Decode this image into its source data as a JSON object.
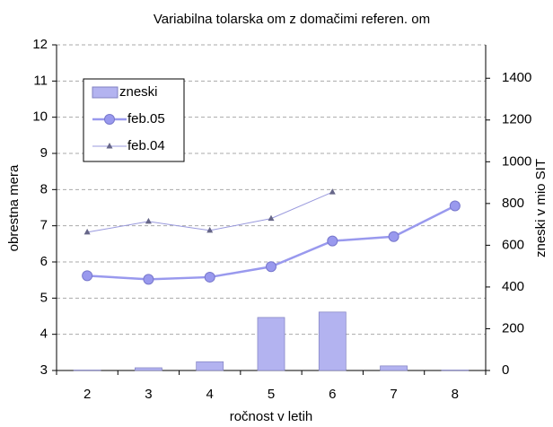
{
  "chart_data": {
    "type": "bar+line",
    "title": "Variabilna tolarska om z domačimi referen. om",
    "x_label": "ročnost v letih",
    "y_label": "obrestna mera",
    "y2_label": "zneski v mio SIT",
    "categories": [
      "2",
      "3",
      "4",
      "5",
      "6",
      "7",
      "8"
    ],
    "ylim": [
      3,
      12
    ],
    "yticks": [
      3,
      4,
      5,
      6,
      7,
      8,
      9,
      10,
      11,
      12
    ],
    "y2lim": [
      0,
      1560
    ],
    "y2ticks": [
      0,
      200,
      400,
      600,
      800,
      1000,
      1200,
      1400
    ],
    "grid": true,
    "series": [
      {
        "name": "zneski",
        "type": "bar",
        "axis": "y2",
        "color": "#b3b3f0",
        "values": [
          2,
          13,
          42,
          254,
          280,
          22,
          2
        ]
      },
      {
        "name": "feb.05",
        "type": "line",
        "color": "#9999ee",
        "values": [
          5.62,
          5.52,
          5.58,
          5.87,
          6.58,
          6.7,
          7.55
        ]
      },
      {
        "name": "feb.04",
        "type": "line",
        "color": "#9999dd",
        "values": [
          6.82,
          7.12,
          6.87,
          7.2,
          7.93,
          null,
          null
        ]
      }
    ]
  }
}
